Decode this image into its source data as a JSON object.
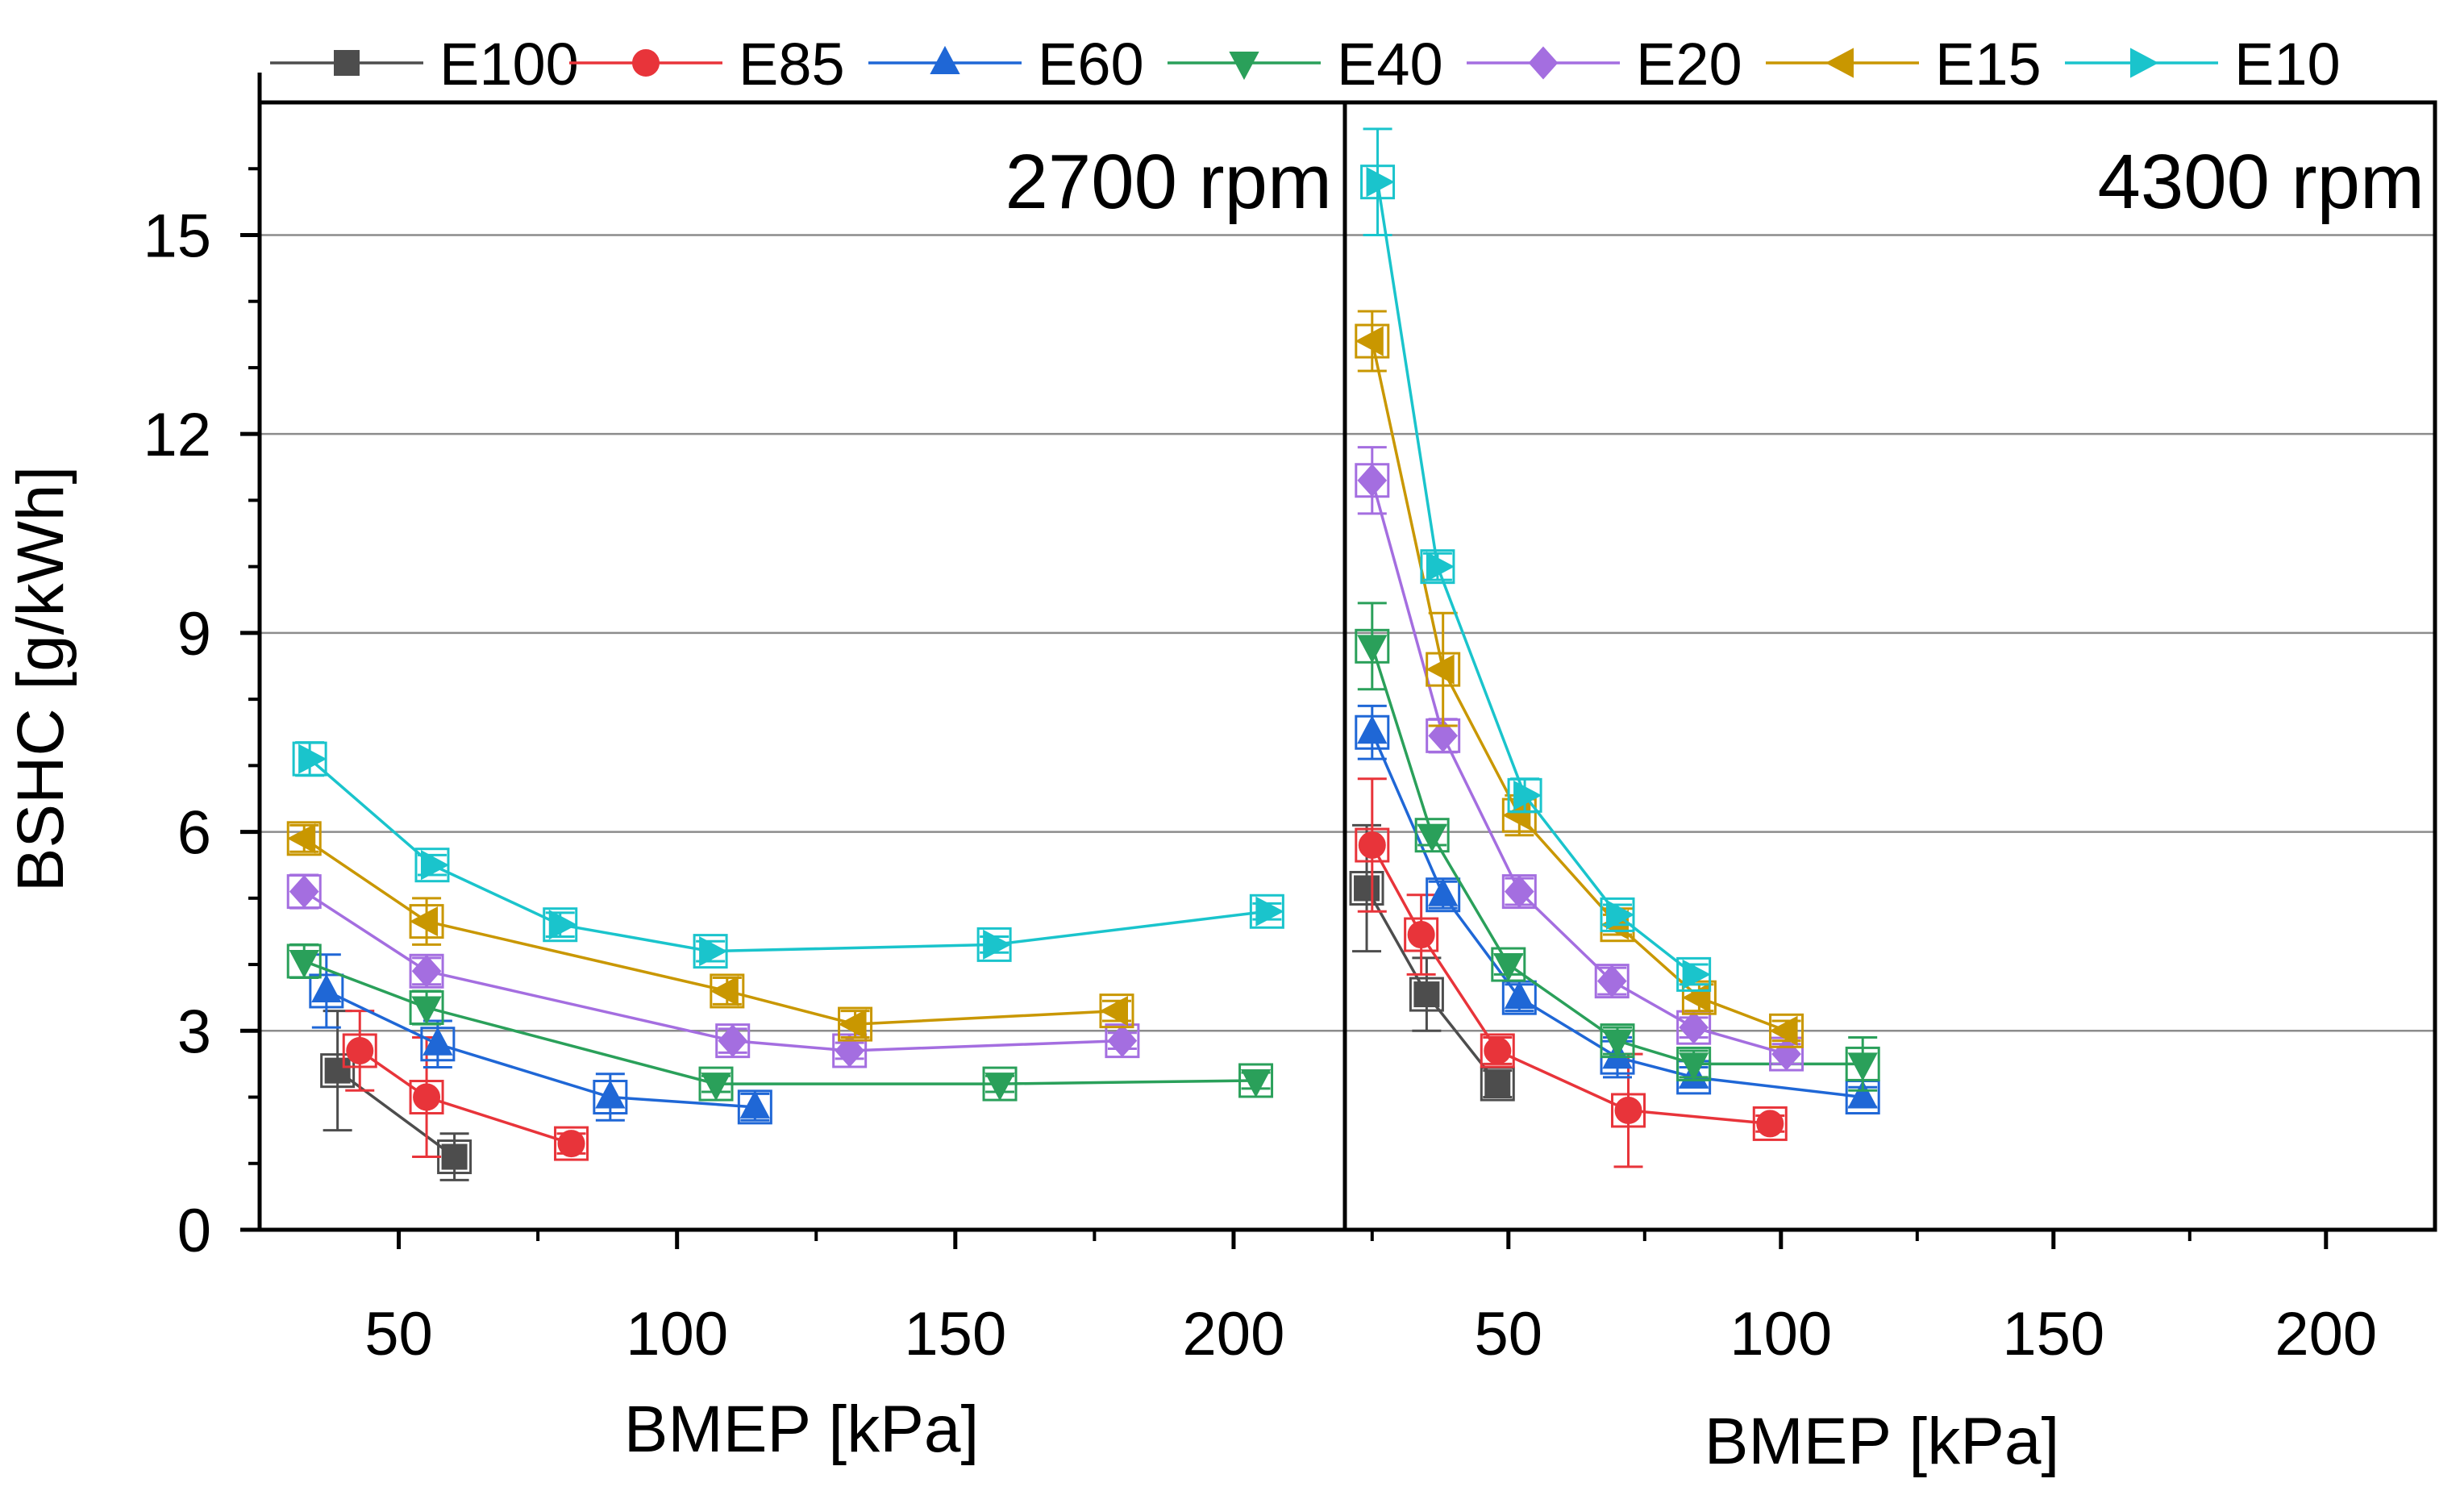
{
  "chart_data": {
    "type": "line",
    "ylabel": "BSHC [g/kWh]",
    "ylim": [
      0,
      17
    ],
    "yticks": [
      0,
      3,
      6,
      9,
      12,
      15
    ],
    "xticks": [
      50,
      100,
      150,
      200
    ],
    "grid": "horizontal",
    "legend_position": "top",
    "panels": [
      {
        "label": "2700 rpm",
        "xlabel": "BMEP [kPa]",
        "xlim": [
          25,
          220
        ],
        "series": [
          {
            "name": "E100",
            "color": "#4d4d4d",
            "marker": "square",
            "x": [
              39,
              60
            ],
            "y": [
              2.4,
              1.1
            ],
            "err": [
              0.9,
              0.35
            ]
          },
          {
            "name": "E85",
            "color": "#e8343a",
            "marker": "circle",
            "x": [
              43,
              55,
              81
            ],
            "y": [
              2.7,
              2.0,
              1.3
            ],
            "err": [
              0.6,
              0.9,
              0.15
            ]
          },
          {
            "name": "E60",
            "color": "#1f67d6",
            "marker": "triangle-up",
            "x": [
              37,
              57,
              88,
              114
            ],
            "y": [
              3.6,
              2.8,
              2.0,
              1.85
            ],
            "err": [
              0.55,
              0.35,
              0.35,
              0.2
            ]
          },
          {
            "name": "E40",
            "color": "#2aa05a",
            "marker": "triangle-down",
            "x": [
              33,
              55,
              107,
              158,
              204
            ],
            "y": [
              4.05,
              3.35,
              2.2,
              2.2,
              2.25
            ],
            "err": [
              0.25,
              0.25,
              0.12,
              0.12,
              0.12
            ]
          },
          {
            "name": "E20",
            "color": "#a46ee0",
            "marker": "diamond",
            "x": [
              33,
              55,
              110,
              131,
              180
            ],
            "y": [
              5.1,
              3.9,
              2.85,
              2.7,
              2.85
            ],
            "err": [
              0.25,
              0.2,
              0.18,
              0.12,
              0.12
            ]
          },
          {
            "name": "E15",
            "color": "#c99700",
            "marker": "triangle-left",
            "x": [
              33,
              55,
              109,
              132,
              179
            ],
            "y": [
              5.9,
              4.65,
              3.6,
              3.1,
              3.3
            ],
            "err": [
              0.2,
              0.35,
              0.2,
              0.2,
              0.15
            ]
          },
          {
            "name": "E10",
            "color": "#1ac4cc",
            "marker": "triangle-right",
            "x": [
              34,
              56,
              79,
              106,
              157,
              206
            ],
            "y": [
              7.1,
              5.5,
              4.6,
              4.2,
              4.3,
              4.8
            ],
            "err": [
              0.25,
              0.15,
              0.18,
              0.15,
              0.12,
              0.12
            ]
          }
        ]
      },
      {
        "label": "4300 rpm",
        "xlabel": "BMEP [kPa]",
        "xlim": [
          20,
          220
        ],
        "series": [
          {
            "name": "E100",
            "color": "#4d4d4d",
            "marker": "square",
            "x": [
              24,
              35,
              48
            ],
            "y": [
              5.15,
              3.55,
              2.2
            ],
            "err": [
              0.95,
              0.55,
              0.2
            ]
          },
          {
            "name": "E85",
            "color": "#e8343a",
            "marker": "circle",
            "x": [
              25,
              34,
              48,
              72,
              98
            ],
            "y": [
              5.8,
              4.45,
              2.7,
              1.8,
              1.6
            ],
            "err": [
              1.0,
              0.6,
              0.2,
              0.85,
              0.12
            ]
          },
          {
            "name": "E60",
            "color": "#1f67d6",
            "marker": "triangle-up",
            "x": [
              25,
              38,
              52,
              70,
              84,
              115
            ],
            "y": [
              7.5,
              5.05,
              3.5,
              2.6,
              2.3,
              2.0
            ],
            "err": [
              0.4,
              0.2,
              0.2,
              0.3,
              0.15,
              0.15
            ]
          },
          {
            "name": "E40",
            "color": "#2aa05a",
            "marker": "triangle-down",
            "x": [
              25,
              36,
              50,
              70,
              84,
              115
            ],
            "y": [
              8.8,
              5.95,
              4.0,
              2.85,
              2.5,
              2.5
            ],
            "err": [
              0.65,
              0.15,
              0.15,
              0.2,
              0.2,
              0.4
            ]
          },
          {
            "name": "E20",
            "color": "#a46ee0",
            "marker": "diamond",
            "x": [
              25,
              38,
              52,
              69,
              84,
              101
            ],
            "y": [
              11.3,
              7.45,
              5.1,
              3.75,
              3.05,
              2.65
            ],
            "err": [
              0.5,
              0.25,
              0.2,
              0.2,
              0.15,
              0.15
            ]
          },
          {
            "name": "E15",
            "color": "#c99700",
            "marker": "triangle-left",
            "x": [
              25,
              38,
              52,
              70,
              85,
              101
            ],
            "y": [
              13.4,
              8.45,
              6.25,
              4.6,
              3.5,
              3.0
            ],
            "err": [
              0.45,
              0.85,
              0.3,
              0.15,
              0.2,
              0.15
            ]
          },
          {
            "name": "E10",
            "color": "#1ac4cc",
            "marker": "triangle-right",
            "x": [
              26,
              37,
              53,
              70,
              84
            ],
            "y": [
              15.8,
              10.0,
              6.55,
              4.75,
              3.85
            ],
            "err": [
              0.8,
              0.2,
              0.25,
              0.15,
              0.15
            ]
          }
        ]
      }
    ]
  }
}
